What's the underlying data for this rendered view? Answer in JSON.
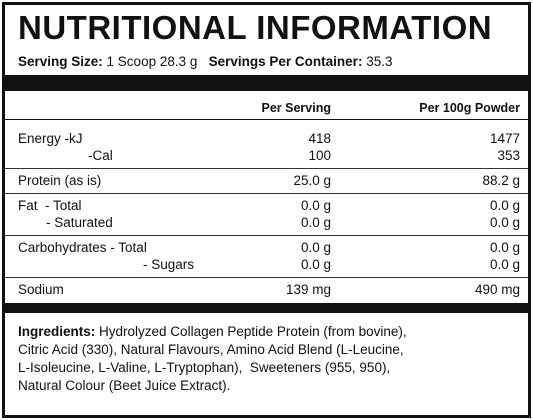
{
  "header": {
    "title": "NUTRITIONAL INFORMATION",
    "serving_size_label": "Serving Size:",
    "serving_size": "1 Scoop 28.3 g",
    "servings_label": "Servings Per Container:",
    "servings": "35.3"
  },
  "table": {
    "columns": [
      "Per Serving",
      "Per 100g Powder"
    ],
    "groups": [
      [
        [
          "Energy -kJ",
          "418",
          "1477"
        ],
        [
          "-Cal",
          "100",
          "353"
        ]
      ],
      [
        [
          "Protein (as is)",
          "25.0 g",
          "88.2 g"
        ]
      ],
      [
        [
          "Fat  - Total",
          "0.0 g",
          "0.0 g"
        ],
        [
          "- Saturated",
          "0.0 g",
          "0.0 g"
        ]
      ],
      [
        [
          "Carbohydrates - Total",
          "0.0 g",
          "0.0 g"
        ],
        [
          "- Sugars",
          "0.0 g",
          "0.0 g"
        ]
      ],
      [
        [
          "Sodium",
          "139 mg",
          "490 mg"
        ]
      ]
    ]
  },
  "ingredients": {
    "label": "Ingredients:",
    "lines": [
      "Hydrolyzed Collagen Peptide Protein (from bovine),",
      "Citric Acid (330), Natural Flavours, Amino Acid Blend (L-Leucine,",
      "L-Isoleucine, L-Valine, L-Tryptophan),  Sweeteners (955, 950),",
      "Natural Colour (Beet Juice Extract)."
    ]
  }
}
